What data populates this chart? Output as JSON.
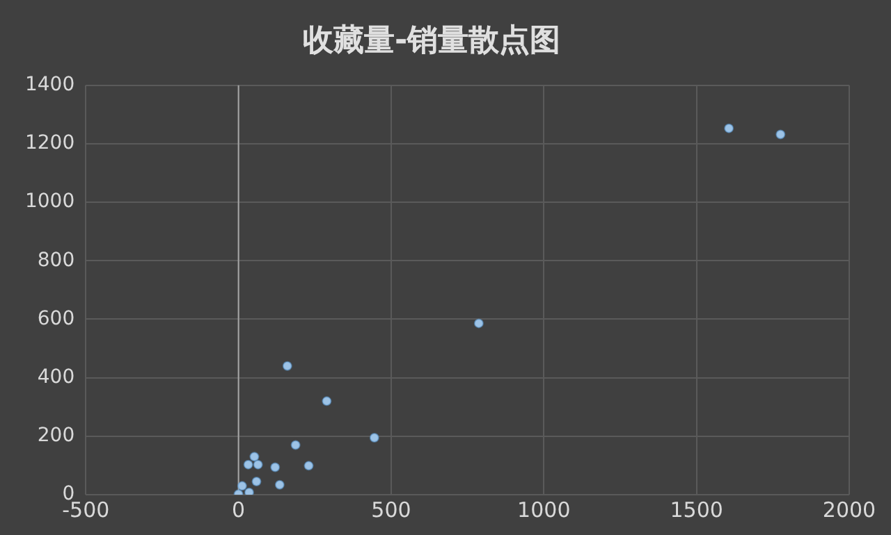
{
  "chart_data": {
    "type": "scatter",
    "title": "收藏量-销量散点图",
    "x": [
      1606,
      1775,
      787,
      160,
      289,
      445,
      187,
      230,
      120,
      135,
      52,
      32,
      64,
      59,
      0,
      35,
      12
    ],
    "values": [
      1253,
      1232,
      586,
      440,
      320,
      195,
      170,
      99,
      94,
      34,
      130,
      103,
      103,
      45,
      2,
      8,
      30
    ],
    "color": "#9dc3e6",
    "marker": "circle",
    "xlim": [
      -500,
      2000
    ],
    "xticks": [
      -500,
      0,
      500,
      1000,
      1500,
      2000
    ],
    "ylim": [
      0,
      1400
    ],
    "yticks": [
      0,
      200,
      400,
      600,
      800,
      1000,
      1200,
      1400
    ],
    "grid": true
  }
}
